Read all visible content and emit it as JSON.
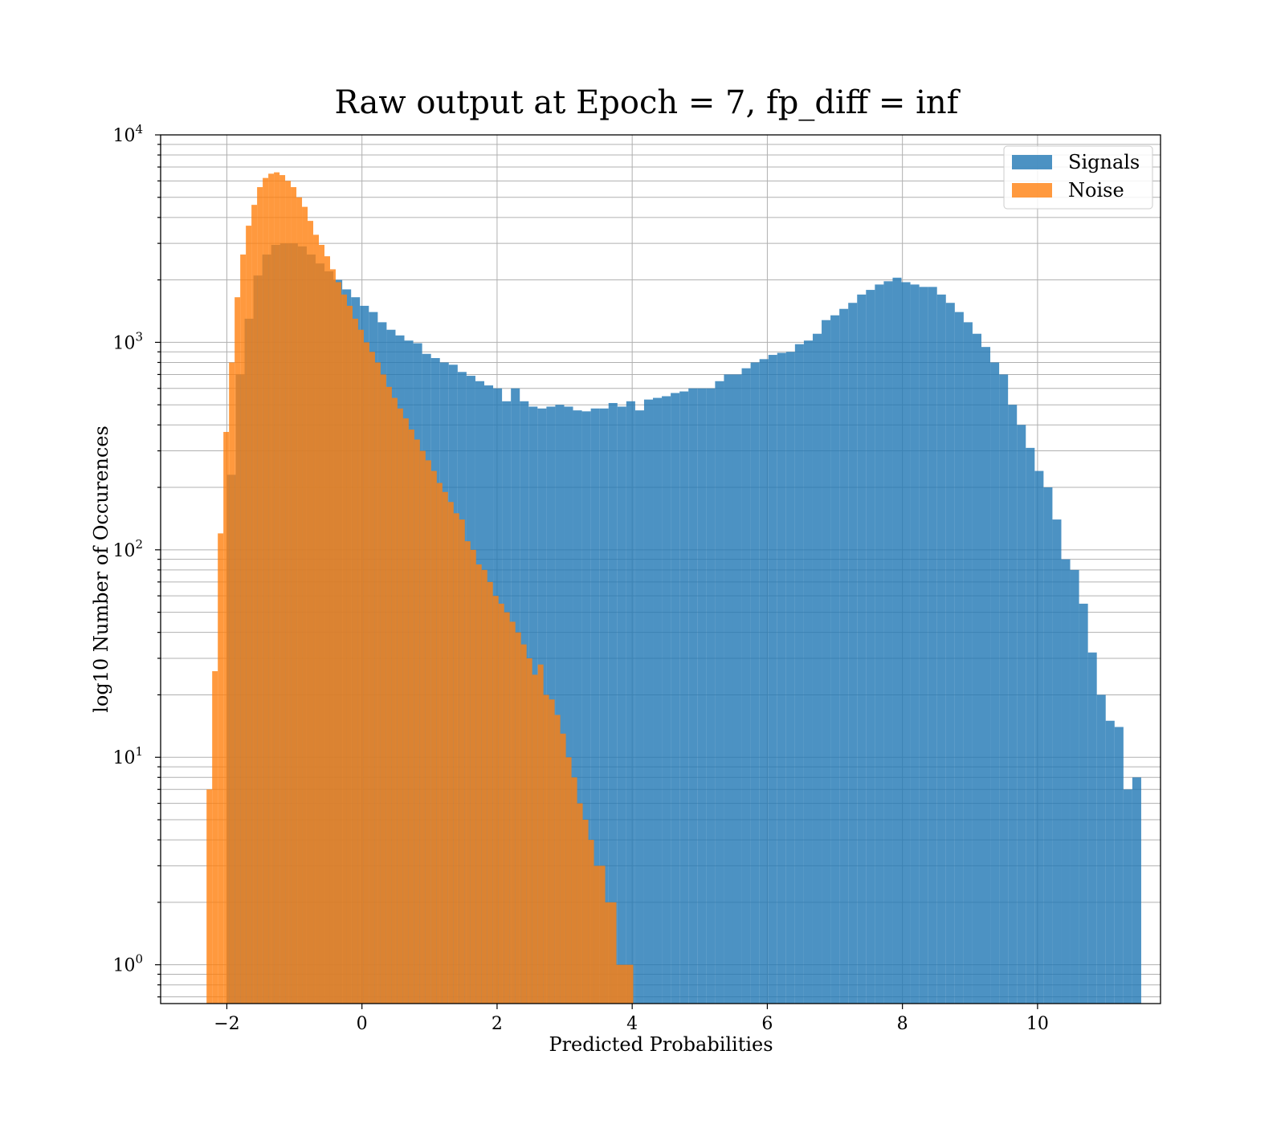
{
  "chart_data": {
    "type": "histogram",
    "title": "Raw output at Epoch = 7, fp_diff = inf",
    "xlabel": "Predicted Probabilities",
    "ylabel": "log10 Number of Occurences",
    "xlim": [
      -2.98,
      11.82
    ],
    "ylim": [
      0.65,
      10000
    ],
    "yscale": "log",
    "grid": true,
    "legend_position": "top-right",
    "x_ticks": [
      -2,
      0,
      2,
      4,
      6,
      8,
      10
    ],
    "x_tick_labels": [
      "−2",
      "0",
      "2",
      "4",
      "6",
      "8",
      "10"
    ],
    "y_ticks": [
      1,
      10,
      100,
      1000,
      10000
    ],
    "y_tick_labels": [
      {
        "base": "10",
        "exp": "0"
      },
      {
        "base": "10",
        "exp": "1"
      },
      {
        "base": "10",
        "exp": "2"
      },
      {
        "base": "10",
        "exp": "3"
      },
      {
        "base": "10",
        "exp": "4"
      }
    ],
    "series": [
      {
        "name": "Signals",
        "color": "#1f77b4",
        "opacity": 0.8,
        "bin_start": -2.0,
        "bin_width": 0.1314,
        "values": [
          230,
          700,
          1300,
          2100,
          2650,
          2950,
          3000,
          3000,
          2900,
          2650,
          2400,
          2200,
          2000,
          1800,
          1650,
          1500,
          1400,
          1250,
          1150,
          1080,
          1020,
          990,
          880,
          840,
          800,
          780,
          720,
          690,
          650,
          620,
          600,
          520,
          600,
          520,
          490,
          480,
          490,
          500,
          490,
          470,
          465,
          480,
          480,
          510,
          490,
          520,
          470,
          530,
          540,
          550,
          570,
          580,
          600,
          600,
          600,
          650,
          700,
          700,
          750,
          800,
          830,
          870,
          890,
          900,
          980,
          1020,
          1100,
          1280,
          1350,
          1450,
          1550,
          1700,
          1790,
          1900,
          1970,
          2050,
          1950,
          1900,
          1850,
          1850,
          1700,
          1550,
          1400,
          1250,
          1100,
          950,
          800,
          700,
          500,
          400,
          310,
          240,
          200,
          140,
          90,
          80,
          55,
          32,
          20,
          15,
          14,
          7,
          8
        ]
      },
      {
        "name": "Noise",
        "color": "#ff7f0e",
        "opacity": 0.8,
        "bin_start": -2.3,
        "bin_width": 0.0831,
        "values": [
          7,
          26,
          120,
          370,
          800,
          1650,
          2650,
          3650,
          4600,
          5600,
          6200,
          6500,
          6600,
          6400,
          6000,
          5600,
          5000,
          4500,
          3850,
          3300,
          2950,
          2600,
          2250,
          1950,
          1700,
          1500,
          1300,
          1150,
          1000,
          900,
          800,
          700,
          610,
          540,
          480,
          430,
          380,
          340,
          300,
          270,
          240,
          210,
          190,
          170,
          150,
          140,
          110,
          100,
          85,
          80,
          70,
          60,
          55,
          50,
          45,
          40,
          35,
          30,
          25,
          28,
          20,
          19,
          16,
          13,
          10,
          8,
          6,
          5,
          4,
          3,
          3,
          2,
          2,
          1,
          1,
          1
        ]
      }
    ]
  }
}
